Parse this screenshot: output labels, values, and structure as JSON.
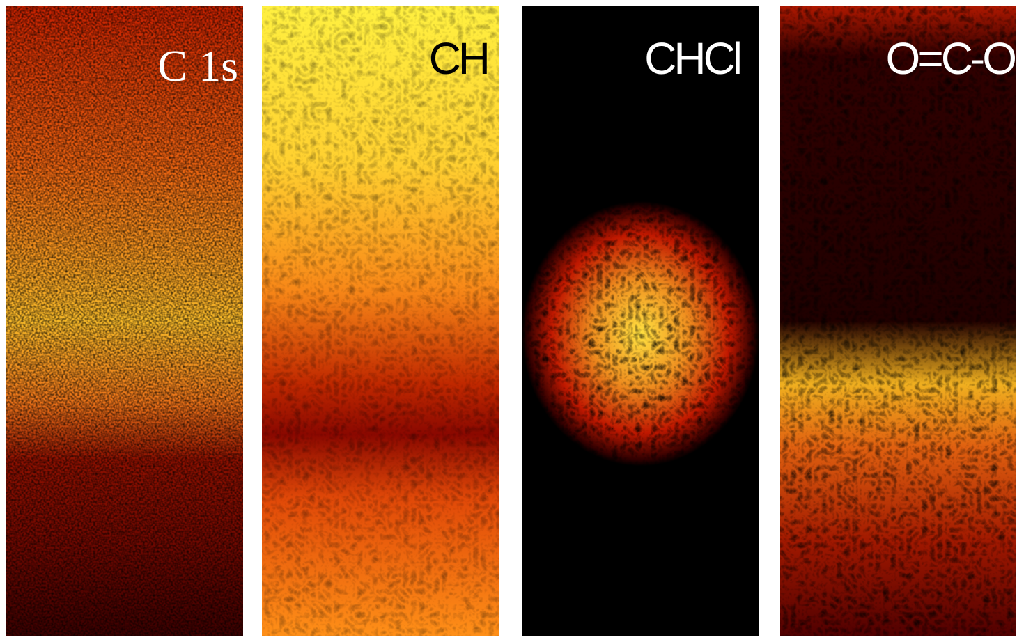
{
  "panels": [
    {
      "label": "C 1s"
    },
    {
      "label": "CH"
    },
    {
      "label": "CHCl"
    },
    {
      "label": "O=C-O"
    }
  ]
}
